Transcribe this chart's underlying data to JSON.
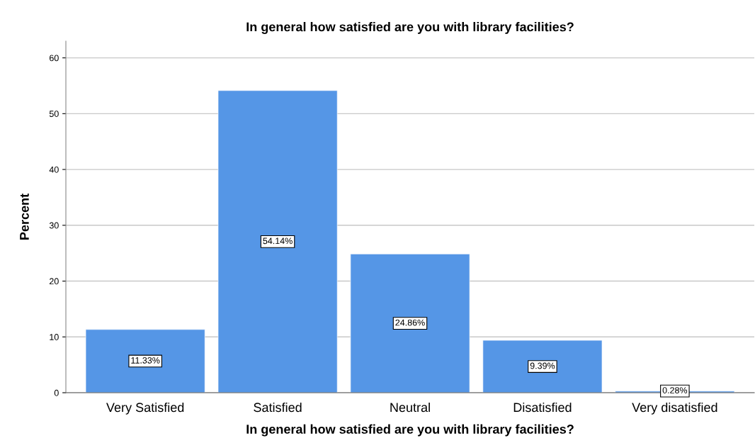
{
  "chart_data": {
    "type": "bar",
    "title": "In general how satisfied are you with library facilities?",
    "xlabel": "In general how satisfied are you with library facilities?",
    "ylabel": "Percent",
    "categories": [
      "Very Satisfied",
      "Satisfied",
      "Neutral",
      "Disatisfied",
      "Very disatisfied"
    ],
    "values": [
      11.33,
      54.14,
      24.86,
      9.39,
      0.28
    ],
    "value_labels": [
      "11.33%",
      "54.14%",
      "24.86%",
      "9.39%",
      "0.28%"
    ],
    "color": "#5596e6",
    "ylim": [
      0,
      63
    ],
    "yticks": [
      0,
      10,
      20,
      30,
      40,
      50,
      60
    ],
    "grid": "y"
  }
}
